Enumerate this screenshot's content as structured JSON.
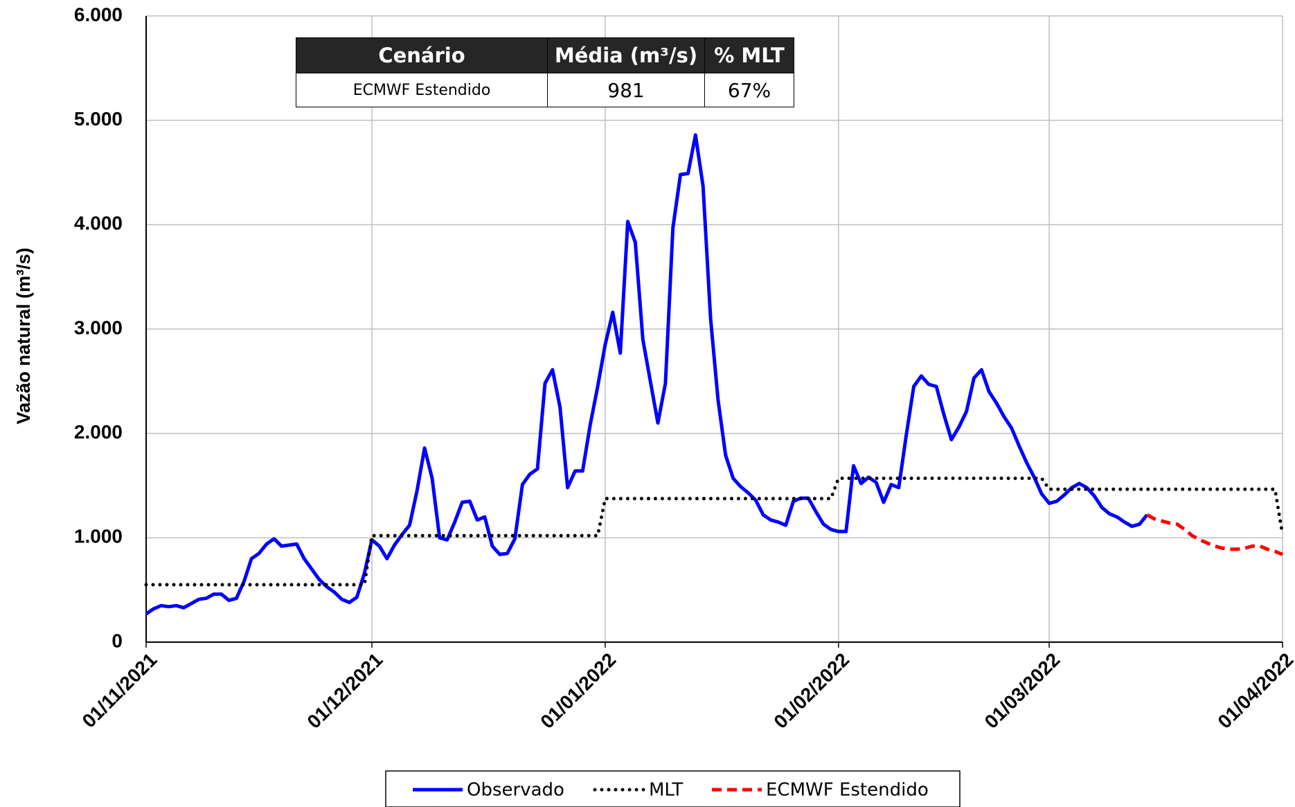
{
  "chart_data": {
    "type": "line",
    "y_label": "Vazão natural (m³/s)",
    "table": {
      "header": [
        "Cenário",
        "Média (m³/s)",
        "% MLT"
      ],
      "rows": [
        [
          "ECMWF Estendido",
          "981",
          "67%"
        ]
      ]
    },
    "xlim": [
      "2021-11-01",
      "2022-04-01"
    ],
    "xticks": [
      {
        "value": "2021-11-01",
        "label": "01/11/2021"
      },
      {
        "value": "2021-12-01",
        "label": "01/12/2021"
      },
      {
        "value": "2022-01-01",
        "label": "01/01/2022"
      },
      {
        "value": "2022-02-01",
        "label": "01/02/2022"
      },
      {
        "value": "2022-03-01",
        "label": "01/03/2022"
      },
      {
        "value": "2022-04-01",
        "label": "01/04/2022"
      }
    ],
    "ylim": [
      0,
      6000
    ],
    "yticks": [
      0,
      {
        "value": 1000,
        "label": "1.000"
      },
      {
        "value": 2000,
        "label": "2.000"
      },
      {
        "value": 3000,
        "label": "3.000"
      },
      {
        "value": 4000,
        "label": "4.000"
      },
      {
        "value": 5000,
        "label": "5.000"
      },
      {
        "value": 6000,
        "label": "6.000"
      }
    ],
    "grid": true,
    "legend": "bottom",
    "x": [
      "2021-11-01",
      "2021-11-02",
      "2021-11-03",
      "2021-11-04",
      "2021-11-05",
      "2021-11-06",
      "2021-11-07",
      "2021-11-08",
      "2021-11-09",
      "2021-11-10",
      "2021-11-11",
      "2021-11-12",
      "2021-11-13",
      "2021-11-14",
      "2021-11-15",
      "2021-11-16",
      "2021-11-17",
      "2021-11-18",
      "2021-11-19",
      "2021-11-20",
      "2021-11-21",
      "2021-11-22",
      "2021-11-23",
      "2021-11-24",
      "2021-11-25",
      "2021-11-26",
      "2021-11-27",
      "2021-11-28",
      "2021-11-29",
      "2021-11-30",
      "2021-12-01",
      "2021-12-02",
      "2021-12-03",
      "2021-12-04",
      "2021-12-05",
      "2021-12-06",
      "2021-12-07",
      "2021-12-08",
      "2021-12-09",
      "2021-12-10",
      "2021-12-11",
      "2021-12-12",
      "2021-12-13",
      "2021-12-14",
      "2021-12-15",
      "2021-12-16",
      "2021-12-17",
      "2021-12-18",
      "2021-12-19",
      "2021-12-20",
      "2021-12-21",
      "2021-12-22",
      "2021-12-23",
      "2021-12-24",
      "2021-12-25",
      "2021-12-26",
      "2021-12-27",
      "2021-12-28",
      "2021-12-29",
      "2021-12-30",
      "2021-12-31",
      "2022-01-01",
      "2022-01-02",
      "2022-01-03",
      "2022-01-04",
      "2022-01-05",
      "2022-01-06",
      "2022-01-07",
      "2022-01-08",
      "2022-01-09",
      "2022-01-10",
      "2022-01-11",
      "2022-01-12",
      "2022-01-13",
      "2022-01-14",
      "2022-01-15",
      "2022-01-16",
      "2022-01-17",
      "2022-01-18",
      "2022-01-19",
      "2022-01-20",
      "2022-01-21",
      "2022-01-22",
      "2022-01-23",
      "2022-01-24",
      "2022-01-25",
      "2022-01-26",
      "2022-01-27",
      "2022-01-28",
      "2022-01-29",
      "2022-01-30",
      "2022-01-31",
      "2022-02-01",
      "2022-02-02",
      "2022-02-03",
      "2022-02-04",
      "2022-02-05",
      "2022-02-06",
      "2022-02-07",
      "2022-02-08",
      "2022-02-09",
      "2022-02-10",
      "2022-02-11",
      "2022-02-12",
      "2022-02-13",
      "2022-02-14",
      "2022-02-15",
      "2022-02-16",
      "2022-02-17",
      "2022-02-18",
      "2022-02-19",
      "2022-02-20",
      "2022-02-21",
      "2022-02-22",
      "2022-02-23",
      "2022-02-24",
      "2022-02-25",
      "2022-02-26",
      "2022-02-27",
      "2022-02-28",
      "2022-03-01",
      "2022-03-02",
      "2022-03-03",
      "2022-03-04",
      "2022-03-05",
      "2022-03-06",
      "2022-03-07",
      "2022-03-08",
      "2022-03-09",
      "2022-03-10",
      "2022-03-11",
      "2022-03-12",
      "2022-03-13",
      "2022-03-14",
      "2022-03-15",
      "2022-03-16",
      "2022-03-17",
      "2022-03-18",
      "2022-03-19",
      "2022-03-20",
      "2022-03-21",
      "2022-03-22",
      "2022-03-23",
      "2022-03-24",
      "2022-03-25",
      "2022-03-26",
      "2022-03-27",
      "2022-03-28",
      "2022-03-29",
      "2022-03-30",
      "2022-03-31",
      "2022-04-01"
    ],
    "series": [
      {
        "name": "Observado",
        "color": "#0000ff",
        "style": "solid",
        "values": [
          270,
          320,
          350,
          340,
          350,
          330,
          370,
          410,
          420,
          460,
          460,
          400,
          420,
          580,
          800,
          850,
          940,
          990,
          920,
          930,
          940,
          800,
          700,
          600,
          530,
          480,
          410,
          380,
          430,
          660,
          980,
          920,
          800,
          930,
          1030,
          1120,
          1450,
          1860,
          1570,
          1000,
          980,
          1150,
          1340,
          1350,
          1170,
          1200,
          920,
          840,
          850,
          990,
          1510,
          1610,
          1660,
          2480,
          2610,
          2250,
          1480,
          1640,
          1640,
          2080,
          2450,
          2850,
          3160,
          2770,
          4030,
          3830,
          2900,
          2500,
          2100,
          2480,
          3970,
          4480,
          4490,
          4860,
          4370,
          3100,
          2320,
          1790,
          1570,
          1490,
          1430,
          1360,
          1220,
          1170,
          1150,
          1120,
          1350,
          1380,
          1380,
          1250,
          1130,
          1080,
          1060,
          1060,
          1690,
          1520,
          1580,
          1530,
          1340,
          1510,
          1480,
          1980,
          2450,
          2550,
          2470,
          2450,
          2180,
          1940,
          2060,
          2210,
          2530,
          2610,
          2400,
          2290,
          2160,
          2050,
          1880,
          1720,
          1580,
          1420,
          1330,
          1350,
          1410,
          1480,
          1520,
          1480,
          1400,
          1290,
          1230,
          1200,
          1150,
          1110,
          1130,
          1220,
          null,
          null,
          null,
          null,
          null,
          null,
          null,
          null,
          null,
          null,
          null,
          null,
          null,
          null,
          null,
          null,
          null,
          null
        ]
      },
      {
        "name": "MLT",
        "color": "#000000",
        "style": "dotted",
        "values": [
          550,
          550,
          550,
          550,
          550,
          550,
          550,
          550,
          550,
          550,
          550,
          550,
          550,
          550,
          550,
          550,
          550,
          550,
          550,
          550,
          550,
          550,
          550,
          550,
          550,
          550,
          550,
          550,
          550,
          550,
          1020,
          1020,
          1020,
          1020,
          1020,
          1020,
          1020,
          1020,
          1020,
          1020,
          1020,
          1020,
          1020,
          1020,
          1020,
          1020,
          1020,
          1020,
          1020,
          1020,
          1020,
          1020,
          1020,
          1020,
          1020,
          1020,
          1020,
          1020,
          1020,
          1020,
          1020,
          1375,
          1375,
          1375,
          1375,
          1375,
          1375,
          1375,
          1375,
          1375,
          1375,
          1375,
          1375,
          1375,
          1375,
          1375,
          1375,
          1375,
          1375,
          1375,
          1375,
          1375,
          1375,
          1375,
          1375,
          1375,
          1375,
          1375,
          1375,
          1375,
          1375,
          1375,
          1570,
          1570,
          1570,
          1570,
          1570,
          1570,
          1570,
          1570,
          1570,
          1570,
          1570,
          1570,
          1570,
          1570,
          1570,
          1570,
          1570,
          1570,
          1570,
          1570,
          1570,
          1570,
          1570,
          1570,
          1570,
          1570,
          1570,
          1570,
          1465,
          1465,
          1465,
          1465,
          1465,
          1465,
          1465,
          1465,
          1465,
          1465,
          1465,
          1465,
          1465,
          1465,
          1465,
          1465,
          1465,
          1465,
          1465,
          1465,
          1465,
          1465,
          1465,
          1465,
          1465,
          1465,
          1465,
          1465,
          1465,
          1465,
          1465,
          1030
        ]
      },
      {
        "name": "ECMWF Estendido",
        "color": "#ff0000",
        "style": "dashed",
        "values": [
          null,
          null,
          null,
          null,
          null,
          null,
          null,
          null,
          null,
          null,
          null,
          null,
          null,
          null,
          null,
          null,
          null,
          null,
          null,
          null,
          null,
          null,
          null,
          null,
          null,
          null,
          null,
          null,
          null,
          null,
          null,
          null,
          null,
          null,
          null,
          null,
          null,
          null,
          null,
          null,
          null,
          null,
          null,
          null,
          null,
          null,
          null,
          null,
          null,
          null,
          null,
          null,
          null,
          null,
          null,
          null,
          null,
          null,
          null,
          null,
          null,
          null,
          null,
          null,
          null,
          null,
          null,
          null,
          null,
          null,
          null,
          null,
          null,
          null,
          null,
          null,
          null,
          null,
          null,
          null,
          null,
          null,
          null,
          null,
          null,
          null,
          null,
          null,
          null,
          null,
          null,
          null,
          null,
          null,
          null,
          null,
          null,
          null,
          null,
          null,
          null,
          null,
          null,
          null,
          null,
          null,
          null,
          null,
          null,
          null,
          null,
          null,
          null,
          null,
          null,
          null,
          null,
          null,
          null,
          null,
          null,
          null,
          null,
          null,
          null,
          null,
          null,
          null,
          null,
          null,
          null,
          null,
          null,
          1220,
          1180,
          1160,
          1140,
          1130,
          1080,
          1020,
          980,
          950,
          920,
          900,
          890,
          890,
          900,
          920,
          920,
          890,
          870,
          840
        ]
      }
    ]
  }
}
